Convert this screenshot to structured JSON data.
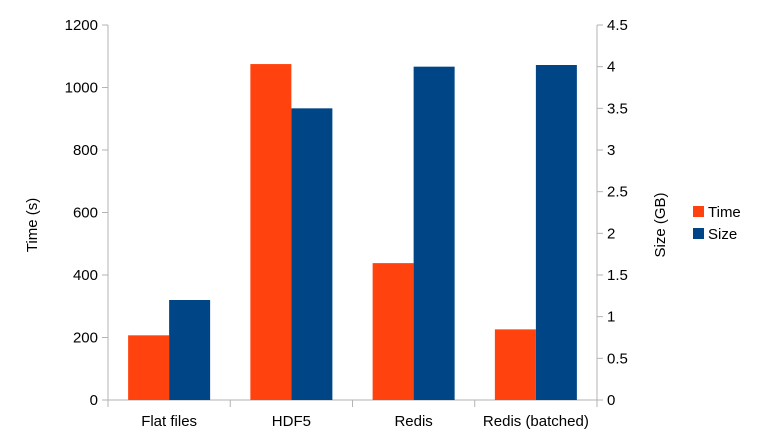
{
  "chart_data": {
    "type": "bar",
    "categories": [
      "Flat files",
      "HDF5",
      "Redis",
      "Redis (batched)"
    ],
    "series": [
      {
        "name": "Time",
        "axis": "left",
        "color": "#ff420e",
        "values": [
          207,
          1075,
          438,
          226
        ]
      },
      {
        "name": "Size",
        "axis": "right",
        "color": "#004586",
        "values": [
          1.2,
          3.5,
          4.0,
          4.02
        ]
      }
    ],
    "ylabel": "Time (s)",
    "y2label": "Size (GB)",
    "ylim": [
      0,
      1200
    ],
    "yticks": [
      "0",
      "200",
      "400",
      "600",
      "800",
      "1000",
      "1200"
    ],
    "y2lim": [
      0,
      4.5
    ],
    "y2ticks": [
      "0",
      "0.5",
      "1",
      "1.5",
      "2",
      "2.5",
      "3",
      "3.5",
      "4",
      "4.5"
    ],
    "grid": false,
    "legend_position": "right"
  }
}
